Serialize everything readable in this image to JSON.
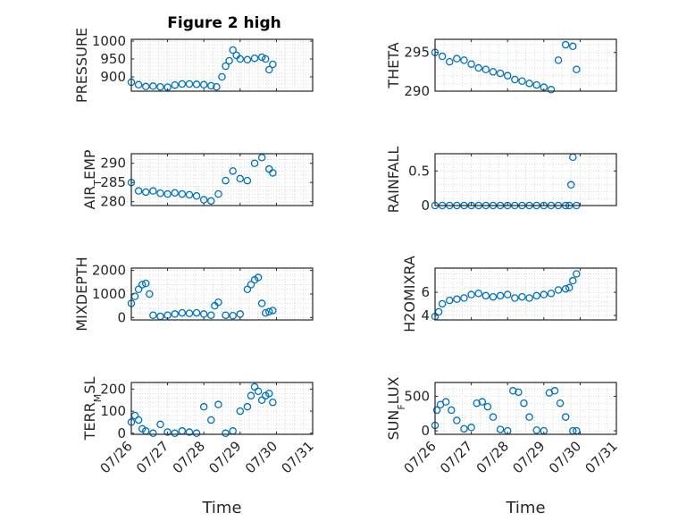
{
  "figure": {
    "title": "Figure 2 high"
  },
  "colors": {
    "marker": "#0072BD",
    "axis": "#262626",
    "grid": "#d9d9d9"
  },
  "chart_data": [
    {
      "type": "scatter",
      "panel": "left-1",
      "ylabel": "PRESSURE",
      "xlabel": "",
      "ylim": [
        860,
        1005
      ],
      "yticks": [
        900,
        950,
        1000
      ],
      "xlim_days": [
        26,
        31
      ],
      "xticks": [
        "07/26",
        "07/27",
        "07/28",
        "07/29",
        "07/30",
        "07/31"
      ],
      "grid": "dotted",
      "show_xtick_labels": false,
      "series": [
        {
          "x": [
            26.0,
            26.2,
            26.4,
            26.6,
            26.8,
            27.0,
            27.2,
            27.4,
            27.6,
            27.8,
            28.0,
            28.2,
            28.35,
            28.5,
            28.6,
            28.7,
            28.8,
            28.9,
            29.0,
            29.2,
            29.4,
            29.6,
            29.7,
            29.8,
            29.9
          ],
          "values": [
            885,
            878,
            873,
            874,
            872,
            871,
            877,
            880,
            880,
            879,
            878,
            875,
            872,
            900,
            930,
            945,
            975,
            960,
            950,
            948,
            952,
            955,
            950,
            920,
            935
          ]
        }
      ]
    },
    {
      "type": "scatter",
      "panel": "right-1",
      "ylabel": "THETA",
      "xlabel": "",
      "ylim": [
        290,
        296.7
      ],
      "yticks": [
        290,
        295
      ],
      "xlim_days": [
        26,
        31
      ],
      "xticks": [
        "07/26",
        "07/27",
        "07/28",
        "07/29",
        "07/30",
        "07/31"
      ],
      "grid": "dotted",
      "show_xtick_labels": false,
      "series": [
        {
          "x": [
            26.0,
            26.2,
            26.4,
            26.6,
            26.8,
            27.0,
            27.2,
            27.4,
            27.6,
            27.8,
            28.0,
            28.2,
            28.4,
            28.6,
            28.8,
            29.0,
            29.2,
            29.4,
            29.6,
            29.8,
            29.9
          ],
          "values": [
            295,
            294.5,
            293.8,
            294.2,
            294.0,
            293.5,
            293.0,
            292.8,
            292.5,
            292.3,
            292.0,
            291.5,
            291.3,
            291.0,
            290.8,
            290.5,
            290.2,
            294,
            296,
            295.8,
            292.8
          ]
        }
      ]
    },
    {
      "type": "scatter",
      "panel": "left-2",
      "ylabel": "AIR_TEMP",
      "xlabel": "",
      "ylim": [
        279,
        292.5
      ],
      "yticks": [
        280,
        285,
        290
      ],
      "xlim_days": [
        26,
        31
      ],
      "xticks": [
        "07/26",
        "07/27",
        "07/28",
        "07/29",
        "07/30",
        "07/31"
      ],
      "grid": "dotted",
      "show_xtick_labels": false,
      "series": [
        {
          "x": [
            26.0,
            26.2,
            26.4,
            26.6,
            26.8,
            27.0,
            27.2,
            27.4,
            27.6,
            27.8,
            28.0,
            28.2,
            28.4,
            28.6,
            28.8,
            29.0,
            29.2,
            29.4,
            29.6,
            29.8,
            29.9
          ],
          "values": [
            285,
            282.8,
            282.5,
            282.8,
            282.2,
            282.0,
            282.3,
            282.0,
            281.8,
            281.5,
            280.5,
            280.2,
            282,
            285.5,
            288,
            286,
            285.5,
            290,
            291.5,
            288.5,
            287.5
          ]
        }
      ]
    },
    {
      "type": "scatter",
      "panel": "right-2",
      "ylabel": "RAINFALL",
      "xlabel": "",
      "ylim": [
        0,
        0.75
      ],
      "yticks": [
        0,
        0.5
      ],
      "xlim_days": [
        26,
        31
      ],
      "xticks": [
        "07/26",
        "07/27",
        "07/28",
        "07/29",
        "07/30",
        "07/31"
      ],
      "grid": "dotted",
      "show_xtick_labels": false,
      "series": [
        {
          "x": [
            26.0,
            26.2,
            26.4,
            26.6,
            26.8,
            27.0,
            27.2,
            27.4,
            27.6,
            27.8,
            28.0,
            28.2,
            28.4,
            28.6,
            28.8,
            29.0,
            29.2,
            29.4,
            29.6,
            29.7,
            29.75,
            29.8,
            29.9
          ],
          "values": [
            0,
            0,
            0,
            0,
            0,
            0,
            0,
            0,
            0,
            0,
            0,
            0,
            0,
            0,
            0,
            0,
            0,
            0,
            0,
            0,
            0.3,
            0.7,
            0
          ]
        }
      ]
    },
    {
      "type": "scatter",
      "panel": "left-3",
      "ylabel": "MIXDEPTH",
      "xlabel": "",
      "ylim": [
        -100,
        2100
      ],
      "yticks": [
        0,
        1000,
        2000
      ],
      "xlim_days": [
        26,
        31
      ],
      "xticks": [
        "07/26",
        "07/27",
        "07/28",
        "07/29",
        "07/30",
        "07/31"
      ],
      "grid": "dotted",
      "show_xtick_labels": false,
      "series": [
        {
          "x": [
            26.0,
            26.1,
            26.2,
            26.3,
            26.4,
            26.5,
            26.6,
            26.8,
            27.0,
            27.2,
            27.4,
            27.6,
            27.8,
            28.0,
            28.2,
            28.3,
            28.4,
            28.6,
            28.8,
            29.0,
            29.2,
            29.3,
            29.4,
            29.5,
            29.6,
            29.7,
            29.8,
            29.9
          ],
          "values": [
            600,
            900,
            1200,
            1400,
            1450,
            1000,
            100,
            50,
            100,
            150,
            200,
            180,
            200,
            150,
            100,
            500,
            650,
            100,
            80,
            150,
            1200,
            1400,
            1600,
            1700,
            600,
            200,
            250,
            300
          ]
        }
      ]
    },
    {
      "type": "scatter",
      "panel": "right-3",
      "ylabel": "H2OMIXRA",
      "xlabel": "",
      "ylim": [
        3.6,
        8.1
      ],
      "yticks": [
        4,
        6
      ],
      "xlim_days": [
        26,
        31
      ],
      "xticks": [
        "07/26",
        "07/27",
        "07/28",
        "07/29",
        "07/30",
        "07/31"
      ],
      "grid": "dotted",
      "show_xtick_labels": false,
      "series": [
        {
          "x": [
            26.0,
            26.1,
            26.2,
            26.4,
            26.6,
            26.8,
            27.0,
            27.2,
            27.4,
            27.6,
            27.8,
            28.0,
            28.2,
            28.4,
            28.6,
            28.8,
            29.0,
            29.2,
            29.4,
            29.6,
            29.7,
            29.8,
            29.9
          ],
          "values": [
            3.9,
            4.3,
            5.0,
            5.3,
            5.4,
            5.5,
            5.8,
            5.9,
            5.7,
            5.6,
            5.7,
            5.8,
            5.5,
            5.6,
            5.5,
            5.7,
            5.8,
            5.9,
            6.2,
            6.3,
            6.4,
            7.0,
            7.6
          ]
        }
      ]
    },
    {
      "type": "scatter",
      "panel": "left-4",
      "ylabel": "TERR_MSL",
      "xlabel": "Time",
      "ylim": [
        -5,
        230
      ],
      "yticks": [
        0,
        100,
        200
      ],
      "xlim_days": [
        26,
        31
      ],
      "xticks": [
        "07/26",
        "07/27",
        "07/28",
        "07/29",
        "07/30",
        "07/31"
      ],
      "grid": "dotted",
      "show_xtick_labels": true,
      "series": [
        {
          "x": [
            26.0,
            26.1,
            26.2,
            26.3,
            26.4,
            26.6,
            26.8,
            27.0,
            27.2,
            27.4,
            27.6,
            27.8,
            28.0,
            28.2,
            28.4,
            28.6,
            28.8,
            29.0,
            29.2,
            29.3,
            29.4,
            29.5,
            29.6,
            29.7,
            29.8,
            29.9
          ],
          "values": [
            50,
            80,
            60,
            20,
            10,
            0,
            40,
            5,
            0,
            10,
            5,
            0,
            120,
            60,
            130,
            0,
            10,
            100,
            120,
            170,
            210,
            190,
            150,
            170,
            180,
            140
          ]
        }
      ]
    },
    {
      "type": "scatter",
      "panel": "right-4",
      "ylabel": "SUN_FLUX",
      "xlabel": "Time",
      "ylim": [
        -50,
        700
      ],
      "yticks": [
        0,
        500
      ],
      "xlim_days": [
        26,
        31
      ],
      "xticks": [
        "07/26",
        "07/27",
        "07/28",
        "07/29",
        "07/30",
        "07/31"
      ],
      "grid": "dotted",
      "show_xtick_labels": true,
      "series": [
        {
          "x": [
            26.0,
            26.05,
            26.15,
            26.3,
            26.45,
            26.6,
            26.8,
            27.0,
            27.15,
            27.3,
            27.45,
            27.6,
            27.8,
            28.0,
            28.15,
            28.3,
            28.45,
            28.6,
            28.8,
            29.0,
            29.15,
            29.3,
            29.45,
            29.6,
            29.8,
            29.9
          ],
          "values": [
            80,
            300,
            380,
            420,
            300,
            150,
            30,
            50,
            400,
            420,
            350,
            200,
            20,
            0,
            580,
            560,
            400,
            200,
            10,
            0,
            550,
            580,
            400,
            200,
            0,
            0
          ]
        }
      ]
    }
  ]
}
